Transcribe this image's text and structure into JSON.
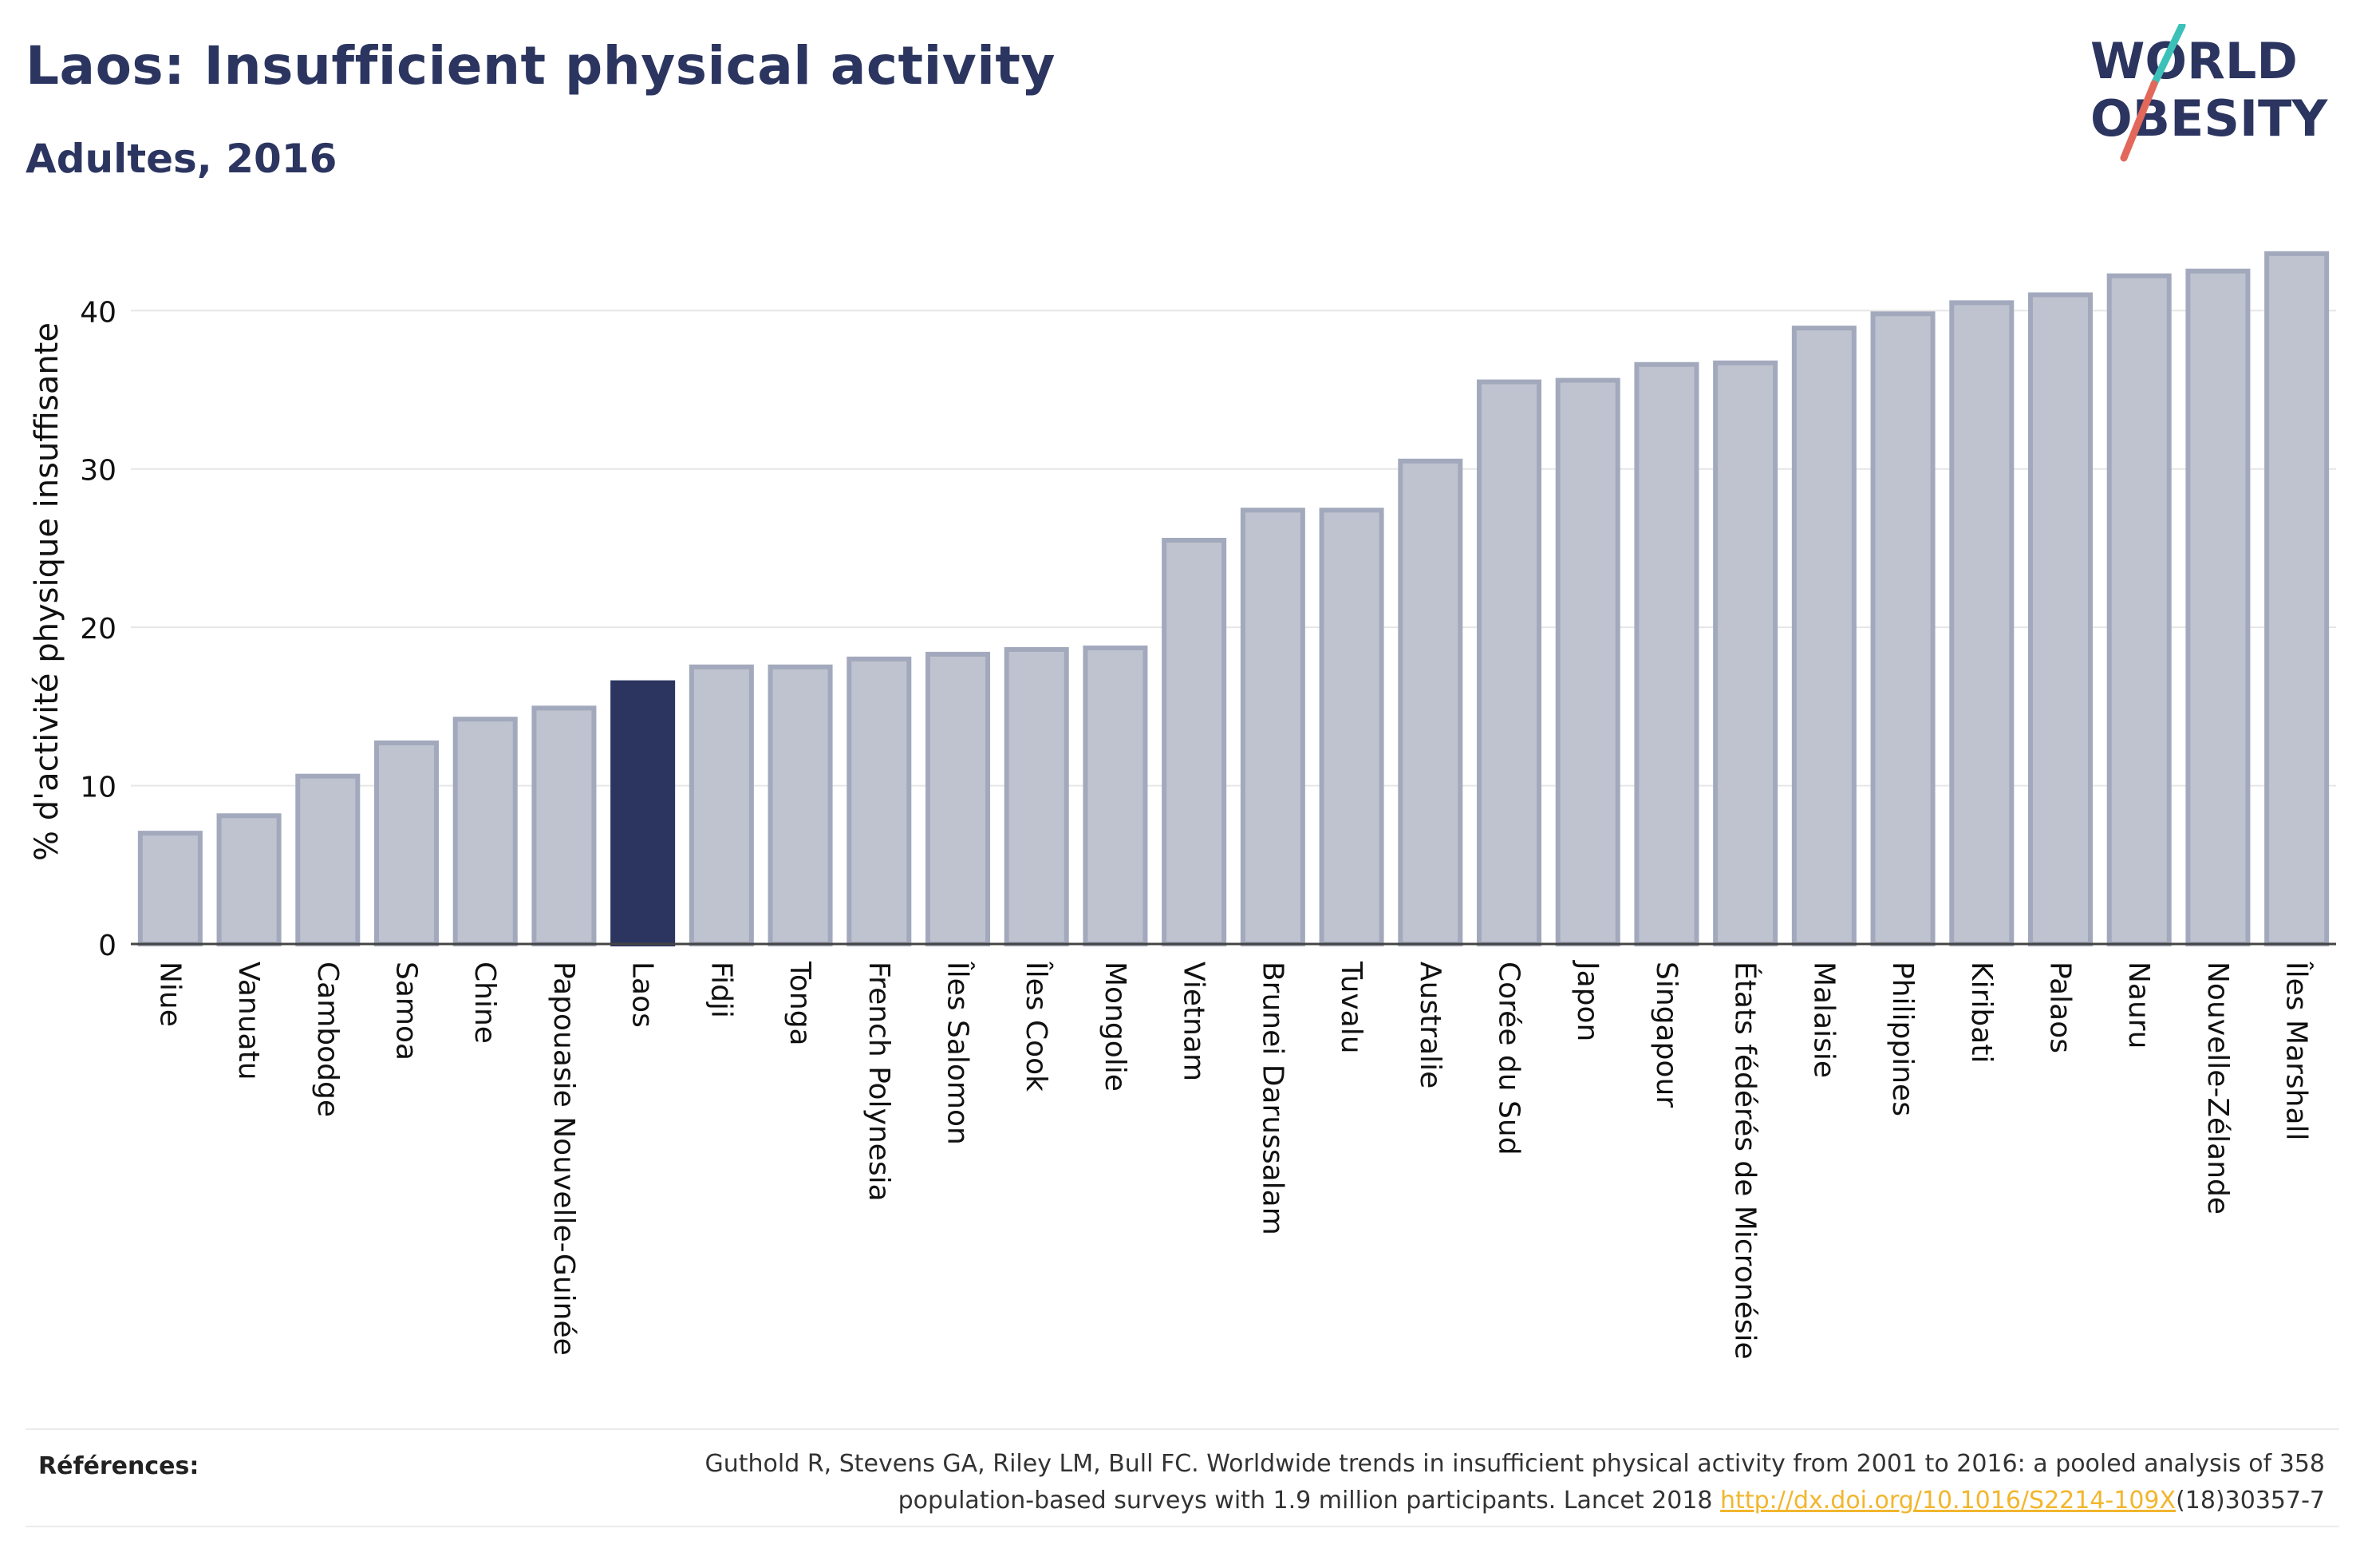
{
  "title": "Laos: Insufficient physical activity",
  "subtitle": "Adultes, 2016",
  "logo": {
    "line1": "WORLD",
    "line2": "OBESITY",
    "colors": {
      "text": "#2b3560",
      "slash_teal": "#3cc1b9",
      "slash_coral": "#e2685c"
    }
  },
  "chart_data": {
    "type": "bar",
    "ylabel": "% d'activité physique insuffisante",
    "xlabel": "",
    "ylim": [
      0,
      44.5
    ],
    "yticks": [
      0,
      10,
      20,
      30,
      40
    ],
    "grid": true,
    "highlight": "Laos",
    "colors": {
      "bar": "#bfc3cf",
      "bar_border": "#a3a9bd",
      "highlight": "#2b3560",
      "grid": "#e6e6e6",
      "axis": "#444444"
    },
    "categories": [
      "Niue",
      "Vanuatu",
      "Cambodge",
      "Samoa",
      "Chine",
      "Papouasie Nouvelle-Guinée",
      "Laos",
      "Fidji",
      "Tonga",
      "French Polynesia",
      "Îles Salomon",
      "Îles Cook",
      "Mongolie",
      "Vietnam",
      "Brunei Darussalam",
      "Tuvalu",
      "Australie",
      "Corée du Sud",
      "Japon",
      "Singapour",
      "États fédérés de Micronésie",
      "Malaisie",
      "Philippines",
      "Kiribati",
      "Palaos",
      "Nauru",
      "Nouvelle-Zélande",
      "Îles Marshall"
    ],
    "values": [
      7.0,
      8.1,
      10.6,
      12.7,
      14.2,
      14.9,
      16.5,
      17.5,
      17.5,
      18.0,
      18.3,
      18.6,
      18.7,
      25.5,
      27.4,
      27.4,
      30.5,
      35.5,
      35.6,
      36.6,
      36.7,
      38.9,
      39.8,
      40.5,
      41.0,
      42.2,
      42.5,
      43.6
    ]
  },
  "references": {
    "label": "Références:",
    "text_line1": "Guthold R, Stevens GA, Riley LM, Bull FC. Worldwide trends in insufficient physical activity from 2001 to 2016: a pooled analysis of 358",
    "text_line2_prefix": "population-based surveys with 1.9 million participants. Lancet 2018 ",
    "link": "http://dx.doi.org/10.1016/S2214-109X",
    "text_line2_suffix": "(18)30357-7"
  }
}
